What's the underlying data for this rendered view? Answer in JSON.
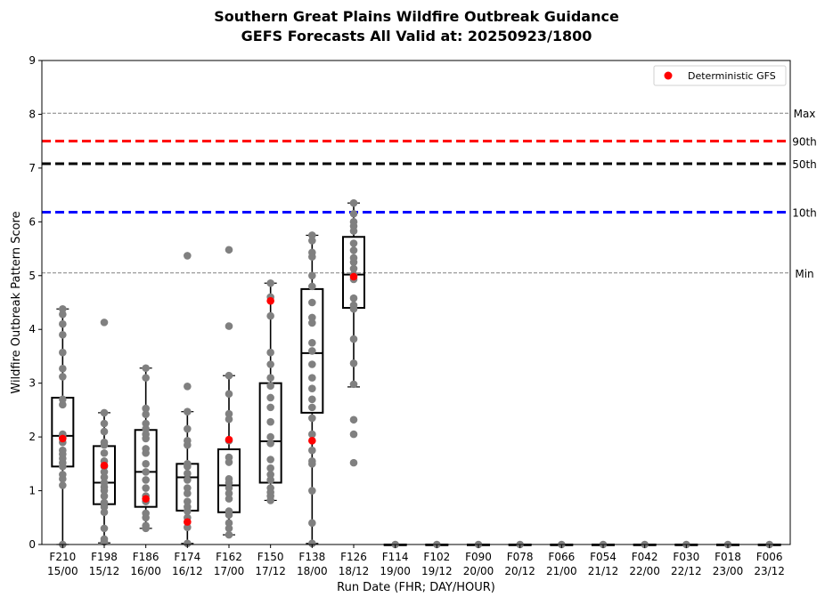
{
  "chart_data": {
    "type": "box",
    "title_line1": "Southern Great Plains Wildfire Outbreak Guidance",
    "title_line2": "GEFS Forecasts All Valid at: 20250923/1800",
    "xlabel": "Run Date (FHR; DAY/HOUR)",
    "ylabel": "Wildfire Outbreak Pattern Score",
    "ylim": [
      0,
      9
    ],
    "yticks": [
      0,
      1,
      2,
      3,
      4,
      5,
      6,
      7,
      8,
      9
    ],
    "legend": {
      "label": "Deterministic GFS",
      "position": "top-right"
    },
    "reference_lines": [
      {
        "label": "Max",
        "value": 8.02,
        "style": "dashed-thin",
        "color": "#808080"
      },
      {
        "label": "90th",
        "value": 7.5,
        "style": "dashed-thick",
        "color": "#ff0000"
      },
      {
        "label": "50th",
        "value": 7.08,
        "style": "dashed-thick",
        "color": "#000000"
      },
      {
        "label": "10th",
        "value": 6.18,
        "style": "dashed-thick",
        "color": "#0000ff"
      },
      {
        "label": "Min",
        "value": 5.05,
        "style": "dashed-thin",
        "color": "#808080"
      }
    ],
    "categories": [
      {
        "fhr": "F210",
        "date": "15/00",
        "min": 0.0,
        "q1": 1.45,
        "median": 2.02,
        "q3": 2.73,
        "max": 4.38,
        "gfs": 1.97,
        "members": [
          0.0,
          1.1,
          1.22,
          1.3,
          1.45,
          1.52,
          1.6,
          1.68,
          1.75,
          1.9,
          2.0,
          2.05,
          2.6,
          2.7,
          3.12,
          3.27,
          3.57,
          3.9,
          4.1,
          4.28,
          4.38
        ]
      },
      {
        "fhr": "F198",
        "date": "15/12",
        "min": 0.03,
        "q1": 0.75,
        "median": 1.15,
        "q3": 1.83,
        "max": 2.45,
        "gfs": 1.47,
        "members": [
          0.05,
          0.1,
          0.3,
          0.6,
          0.7,
          0.78,
          0.9,
          1.0,
          1.07,
          1.15,
          1.25,
          1.35,
          1.45,
          1.55,
          1.7,
          1.85,
          1.9,
          2.1,
          2.25,
          2.45,
          4.13
        ]
      },
      {
        "fhr": "F186",
        "date": "16/00",
        "min": 0.3,
        "q1": 0.7,
        "median": 1.35,
        "q3": 2.13,
        "max": 3.28,
        "gfs": 0.85,
        "members": [
          0.3,
          0.35,
          0.5,
          0.58,
          0.8,
          0.9,
          1.05,
          1.2,
          1.35,
          1.5,
          1.7,
          1.78,
          1.97,
          2.05,
          2.15,
          2.25,
          2.42,
          2.53,
          3.1,
          3.28
        ]
      },
      {
        "fhr": "F174",
        "date": "16/12",
        "min": 0.02,
        "q1": 0.63,
        "median": 1.25,
        "q3": 1.5,
        "max": 2.47,
        "gfs": 0.42,
        "members": [
          0.02,
          0.32,
          0.5,
          0.62,
          0.7,
          0.8,
          0.95,
          1.05,
          1.2,
          1.32,
          1.45,
          1.5,
          1.85,
          1.93,
          2.15,
          2.47,
          2.94,
          5.37
        ]
      },
      {
        "fhr": "F162",
        "date": "17/00",
        "min": 0.18,
        "q1": 0.6,
        "median": 1.1,
        "q3": 1.77,
        "max": 3.14,
        "gfs": 1.95,
        "members": [
          0.18,
          0.3,
          0.4,
          0.55,
          0.62,
          0.85,
          0.95,
          1.05,
          1.15,
          1.22,
          1.53,
          1.62,
          1.93,
          2.33,
          2.43,
          2.8,
          3.14,
          4.06,
          5.48
        ]
      },
      {
        "fhr": "F150",
        "date": "17/12",
        "min": 0.82,
        "q1": 1.15,
        "median": 1.92,
        "q3": 3.0,
        "max": 4.86,
        "gfs": 4.53,
        "members": [
          0.82,
          0.9,
          0.97,
          1.05,
          1.2,
          1.3,
          1.42,
          1.58,
          1.88,
          2.0,
          2.28,
          2.55,
          2.73,
          2.95,
          3.1,
          3.35,
          3.57,
          4.25,
          4.6,
          4.86
        ]
      },
      {
        "fhr": "F138",
        "date": "18/00",
        "min": 0.02,
        "q1": 2.45,
        "median": 3.56,
        "q3": 4.75,
        "max": 5.75,
        "gfs": 1.93,
        "members": [
          0.02,
          0.4,
          1.0,
          1.5,
          1.55,
          1.75,
          2.05,
          2.35,
          2.55,
          2.7,
          2.9,
          3.1,
          3.35,
          3.6,
          3.75,
          4.12,
          4.22,
          4.5,
          4.8,
          5.0,
          5.35,
          5.43,
          5.65,
          5.75
        ]
      },
      {
        "fhr": "F126",
        "date": "18/12",
        "min": 2.93,
        "q1": 4.4,
        "median": 5.02,
        "q3": 5.72,
        "max": 6.35,
        "gfs": 4.98,
        "members": [
          1.52,
          2.05,
          2.32,
          2.98,
          3.37,
          3.82,
          4.38,
          4.45,
          4.58,
          4.93,
          5.02,
          5.13,
          5.25,
          5.33,
          5.47,
          5.6,
          5.83,
          5.92,
          6.0,
          6.15,
          6.35
        ]
      },
      {
        "fhr": "F114",
        "date": "19/00",
        "min": 0,
        "q1": 0,
        "median": 0,
        "q3": 0,
        "max": 0,
        "gfs": null,
        "members": [
          0
        ]
      },
      {
        "fhr": "F102",
        "date": "19/12",
        "min": 0,
        "q1": 0,
        "median": 0,
        "q3": 0,
        "max": 0,
        "gfs": null,
        "members": [
          0
        ]
      },
      {
        "fhr": "F090",
        "date": "20/00",
        "min": 0,
        "q1": 0,
        "median": 0,
        "q3": 0,
        "max": 0,
        "gfs": null,
        "members": [
          0
        ]
      },
      {
        "fhr": "F078",
        "date": "20/12",
        "min": 0,
        "q1": 0,
        "median": 0,
        "q3": 0,
        "max": 0,
        "gfs": null,
        "members": [
          0
        ]
      },
      {
        "fhr": "F066",
        "date": "21/00",
        "min": 0,
        "q1": 0,
        "median": 0,
        "q3": 0,
        "max": 0,
        "gfs": null,
        "members": [
          0
        ]
      },
      {
        "fhr": "F054",
        "date": "21/12",
        "min": 0,
        "q1": 0,
        "median": 0,
        "q3": 0,
        "max": 0,
        "gfs": null,
        "members": [
          0
        ]
      },
      {
        "fhr": "F042",
        "date": "22/00",
        "min": 0,
        "q1": 0,
        "median": 0,
        "q3": 0,
        "max": 0,
        "gfs": null,
        "members": [
          0
        ]
      },
      {
        "fhr": "F030",
        "date": "22/12",
        "min": 0,
        "q1": 0,
        "median": 0,
        "q3": 0,
        "max": 0,
        "gfs": null,
        "members": [
          0
        ]
      },
      {
        "fhr": "F018",
        "date": "23/00",
        "min": 0,
        "q1": 0,
        "median": 0,
        "q3": 0,
        "max": 0,
        "gfs": null,
        "members": [
          0
        ]
      },
      {
        "fhr": "F006",
        "date": "23/12",
        "min": 0,
        "q1": 0,
        "median": 0,
        "q3": 0,
        "max": 0,
        "gfs": null,
        "members": [
          0
        ]
      }
    ]
  }
}
